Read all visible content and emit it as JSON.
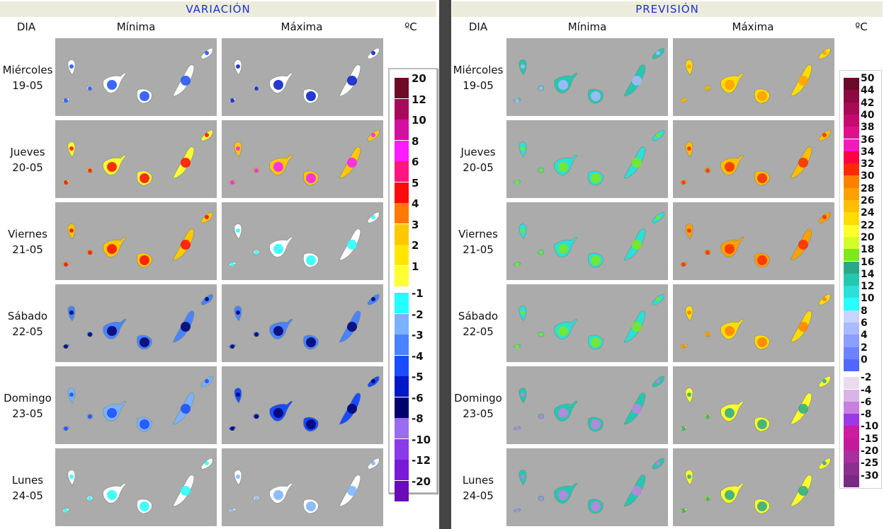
{
  "left_panel": {
    "title": "VARIACIÓN",
    "col_dia": "DIA",
    "col_min": "Mínima",
    "col_max": "Máxima",
    "col_unit": "ºC"
  },
  "right_panel": {
    "title": "PREVISIÓN",
    "col_dia": "DIA",
    "col_min": "Mínima",
    "col_max": "Máxima",
    "col_unit": "ºC"
  },
  "days": [
    {
      "name": "Miércoles",
      "date": "19-05"
    },
    {
      "name": "Jueves",
      "date": "20-05"
    },
    {
      "name": "Viernes",
      "date": "21-05"
    },
    {
      "name": "Sábado",
      "date": "22-05"
    },
    {
      "name": "Domingo",
      "date": "23-05"
    },
    {
      "name": "Lunes",
      "date": "24-05"
    }
  ],
  "variation_legend": [
    {
      "label": "20",
      "color": "#6e0a28"
    },
    {
      "label": "12",
      "color": "#a8085a"
    },
    {
      "label": "10",
      "color": "#d20fa0"
    },
    {
      "label": "8",
      "color": "#ff1aff"
    },
    {
      "label": "6",
      "color": "#ff1480"
    },
    {
      "label": "5",
      "color": "#ff0a0a"
    },
    {
      "label": "4",
      "color": "#ff7a00"
    },
    {
      "label": "3",
      "color": "#ffc800"
    },
    {
      "label": "2",
      "color": "#ffe600"
    },
    {
      "label": "1",
      "color": "#ffff33"
    },
    {
      "label": "-1",
      "color": "#22ffff"
    },
    {
      "label": "-2",
      "color": "#7ab2ff"
    },
    {
      "label": "-3",
      "color": "#4a82ff"
    },
    {
      "label": "-4",
      "color": "#1a4cff"
    },
    {
      "label": "-5",
      "color": "#0018c8"
    },
    {
      "label": "-6",
      "color": "#00006e"
    },
    {
      "label": "-8",
      "color": "#9a6cf0"
    },
    {
      "label": "-10",
      "color": "#8a3ae8"
    },
    {
      "label": "-12",
      "color": "#7a1ad8"
    },
    {
      "label": "-20",
      "color": "#6a0ab8"
    }
  ],
  "forecast_legend": [
    {
      "label": "50",
      "color": "#6a0a2a"
    },
    {
      "label": "44",
      "color": "#8c0a40"
    },
    {
      "label": "42",
      "color": "#a80a55"
    },
    {
      "label": "40",
      "color": "#c80a70"
    },
    {
      "label": "38",
      "color": "#e0108a"
    },
    {
      "label": "36",
      "color": "#f01ac0"
    },
    {
      "label": "34",
      "color": "#ff0044"
    },
    {
      "label": "32",
      "color": "#ff2a00"
    },
    {
      "label": "30",
      "color": "#ff8000"
    },
    {
      "label": "28",
      "color": "#ffa000"
    },
    {
      "label": "26",
      "color": "#ffbe00"
    },
    {
      "label": "24",
      "color": "#ffdc00"
    },
    {
      "label": "22",
      "color": "#ffff2a"
    },
    {
      "label": "20",
      "color": "#d2ff2a"
    },
    {
      "label": "18",
      "color": "#7ee81a"
    },
    {
      "label": "16",
      "color": "#2aa888"
    },
    {
      "label": "14",
      "color": "#24c8b0"
    },
    {
      "label": "12",
      "color": "#2ae0d8"
    },
    {
      "label": "10",
      "color": "#2affff"
    },
    {
      "label": "8",
      "color": "#c8d4ff"
    },
    {
      "label": "6",
      "color": "#aabaff"
    },
    {
      "label": "4",
      "color": "#8c9eff"
    },
    {
      "label": "2",
      "color": "#6e82ff"
    },
    {
      "label": "0",
      "color": "#5068ff"
    },
    {
      "label": "-2",
      "color": "#eadcea"
    },
    {
      "label": "-4",
      "color": "#dab4e6"
    },
    {
      "label": "-6",
      "color": "#c880e0"
    },
    {
      "label": "-8",
      "color": "#9a3ae6"
    },
    {
      "label": "-10",
      "color": "#d01aa0"
    },
    {
      "label": "-15",
      "color": "#c41a9a"
    },
    {
      "label": "-20",
      "color": "#a8309e"
    },
    {
      "label": "-25",
      "color": "#8c3090"
    },
    {
      "label": "-30",
      "color": "#7a2a86"
    }
  ],
  "map_colors": {
    "variation_min": [
      {
        "base": "#ffffff",
        "core": "#1a4cff"
      },
      {
        "base": "#ffff33",
        "core": "#ff0a0a"
      },
      {
        "base": "#ffc800",
        "core": "#ff0a0a"
      },
      {
        "base": "#4a82ff",
        "core": "#00006e"
      },
      {
        "base": "#7ab2ff",
        "core": "#1a4cff"
      },
      {
        "base": "#ffffff",
        "core": "#22ffff"
      }
    ],
    "variation_max": [
      {
        "base": "#ffffff",
        "core": "#0018c8"
      },
      {
        "base": "#ffc800",
        "core": "#ff1aff"
      },
      {
        "base": "#ffffff",
        "core": "#22ffff"
      },
      {
        "base": "#4a82ff",
        "core": "#00006e"
      },
      {
        "base": "#1a4cff",
        "core": "#00006e"
      },
      {
        "base": "#ffffff",
        "core": "#7ab2ff"
      }
    ],
    "forecast_min": [
      {
        "base": "#24c8b0",
        "core": "#aabaff"
      },
      {
        "base": "#2ae0d8",
        "core": "#7ee81a"
      },
      {
        "base": "#2ae0d8",
        "core": "#7ee81a"
      },
      {
        "base": "#2ae0d8",
        "core": "#7ee81a"
      },
      {
        "base": "#24c8b0",
        "core": "#c880e0"
      },
      {
        "base": "#24c8b0",
        "core": "#c880e0"
      }
    ],
    "forecast_max": [
      {
        "base": "#ffdc00",
        "core": "#ffa000"
      },
      {
        "base": "#ffbe00",
        "core": "#ff2a00"
      },
      {
        "base": "#ffa000",
        "core": "#ff2a00"
      },
      {
        "base": "#ffdc00",
        "core": "#ff8000"
      },
      {
        "base": "#ffff2a",
        "core": "#2aa888"
      },
      {
        "base": "#ffff2a",
        "core": "#2aa888"
      }
    ]
  }
}
